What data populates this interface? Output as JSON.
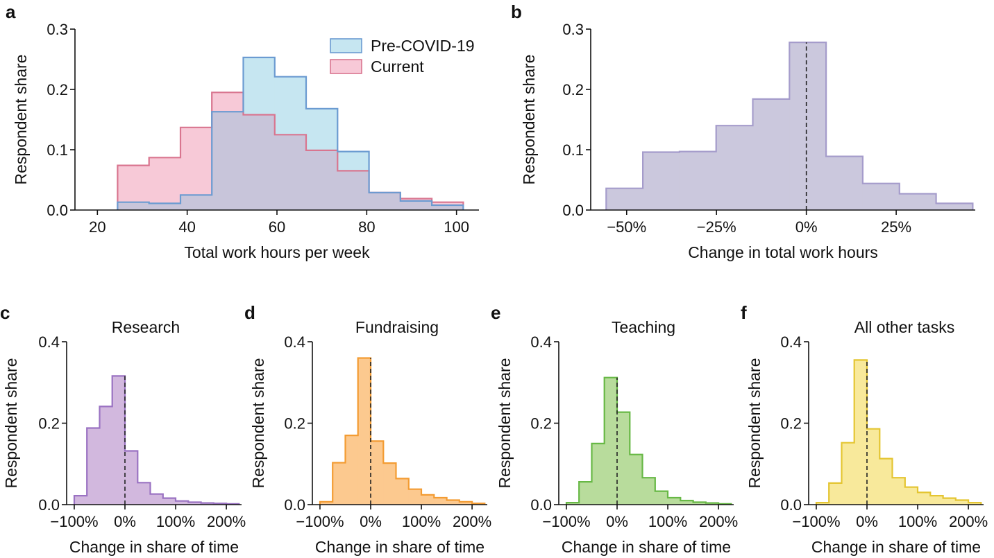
{
  "colors": {
    "pre_fill": "#c6e6f1",
    "pre_line": "#6b9bd1",
    "cur_fill": "#f7c9d7",
    "cur_line": "#d9758f",
    "overlap_fill": "#c8c5da",
    "b_fill": "#cbc8dd",
    "b_line": "#a59ccb",
    "research_fill": "#d2b8de",
    "research_line": "#9a72c2",
    "fund_fill": "#fcc98f",
    "fund_line": "#f39c33",
    "teach_fill": "#b8dc9c",
    "teach_line": "#67b845",
    "other_fill": "#f8e99b",
    "other_line": "#e4c532"
  },
  "chart_data": [
    {
      "panel": "a",
      "type": "histogram",
      "xlabel": "Total work hours per week",
      "ylabel": "Respondent share",
      "xlim": [
        15,
        105
      ],
      "ylim": [
        0,
        0.3
      ],
      "xticks": [
        20,
        40,
        60,
        80,
        100
      ],
      "yticks": [
        0.0,
        0.1,
        0.2,
        0.3
      ],
      "ytick_labels": [
        "0.0",
        "0.1",
        "0.2",
        "0.3"
      ],
      "legend_position": "top-right",
      "bin_edges": [
        24.5,
        31.5,
        38.5,
        45.5,
        52.5,
        59.5,
        66.5,
        73.5,
        80.5,
        87.5,
        94.5,
        101.5
      ],
      "series": [
        {
          "name": "Pre-COVID-19",
          "values": [
            0.013,
            0.011,
            0.025,
            0.163,
            0.253,
            0.221,
            0.168,
            0.097,
            0.029,
            0.015,
            0.008
          ]
        },
        {
          "name": "Current",
          "values": [
            0.074,
            0.087,
            0.137,
            0.195,
            0.158,
            0.125,
            0.099,
            0.065,
            0.029,
            0.019,
            0.013
          ]
        }
      ]
    },
    {
      "panel": "b",
      "type": "histogram",
      "xlabel": "Change in total work hours",
      "ylabel": "Respondent share",
      "xlim": [
        -0.6,
        0.47
      ],
      "ylim": [
        0,
        0.3
      ],
      "xticks": [
        -0.5,
        -0.25,
        0,
        0.25
      ],
      "xtick_labels": [
        "−50%",
        "−25%",
        "0%",
        "25%"
      ],
      "yticks": [
        0.0,
        0.1,
        0.2,
        0.3
      ],
      "ytick_labels": [
        "0.0",
        "0.1",
        "0.2",
        "0.3"
      ],
      "bin_edges": [
        -0.557,
        -0.455,
        -0.353,
        -0.251,
        -0.149,
        -0.047,
        0.055,
        0.157,
        0.259,
        0.361,
        0.463
      ],
      "values": [
        0.036,
        0.096,
        0.097,
        0.14,
        0.184,
        0.278,
        0.089,
        0.044,
        0.027,
        0.011
      ],
      "reference_line": 0
    },
    {
      "panel": "c",
      "type": "histogram",
      "title": "Research",
      "xlabel": "Change in share of time",
      "ylabel": "Respondent share",
      "xlim": [
        -1.15,
        2.3
      ],
      "ylim": [
        0,
        0.4
      ],
      "xticks": [
        -1,
        0,
        1,
        2
      ],
      "xtick_labels": [
        "−100%",
        "0%",
        "100%",
        "200%"
      ],
      "yticks": [
        0.0,
        0.2,
        0.4
      ],
      "ytick_labels": [
        "0.0",
        "0.2",
        "0.4"
      ],
      "bin_edges": [
        -1.0,
        -0.75,
        -0.5,
        -0.25,
        0.0,
        0.25,
        0.5,
        0.75,
        1.0,
        1.25,
        1.5,
        1.75,
        2.0,
        2.25
      ],
      "values": [
        0.022,
        0.188,
        0.241,
        0.316,
        0.132,
        0.054,
        0.026,
        0.016,
        0.009,
        0.006,
        0.004,
        0.003,
        0.002
      ],
      "reference_line": 0
    },
    {
      "panel": "d",
      "type": "histogram",
      "title": "Fundraising",
      "xlabel": "Change in share of time",
      "ylabel": "Respondent share",
      "xlim": [
        -1.15,
        2.3
      ],
      "ylim": [
        0,
        0.4
      ],
      "xticks": [
        -1,
        0,
        1,
        2
      ],
      "xtick_labels": [
        "−100%",
        "0%",
        "100%",
        "200%"
      ],
      "yticks": [
        0.0,
        0.2,
        0.4
      ],
      "ytick_labels": [
        "0.0",
        "0.2",
        "0.4"
      ],
      "bin_edges": [
        -1.0,
        -0.75,
        -0.5,
        -0.25,
        0.0,
        0.25,
        0.5,
        0.75,
        1.0,
        1.25,
        1.5,
        1.75,
        2.0,
        2.25
      ],
      "values": [
        0.007,
        0.103,
        0.17,
        0.36,
        0.156,
        0.102,
        0.064,
        0.038,
        0.024,
        0.017,
        0.011,
        0.007,
        0.003
      ],
      "reference_line": 0
    },
    {
      "panel": "e",
      "type": "histogram",
      "title": "Teaching",
      "xlabel": "Change in share of time",
      "ylabel": "Respondent share",
      "xlim": [
        -1.15,
        2.3
      ],
      "ylim": [
        0,
        0.4
      ],
      "xticks": [
        -1,
        0,
        1,
        2
      ],
      "xtick_labels": [
        "−100%",
        "0%",
        "100%",
        "200%"
      ],
      "yticks": [
        0.0,
        0.2,
        0.4
      ],
      "ytick_labels": [
        "0.0",
        "0.2",
        "0.4"
      ],
      "bin_edges": [
        -1.0,
        -0.75,
        -0.5,
        -0.25,
        0.0,
        0.25,
        0.5,
        0.75,
        1.0,
        1.25,
        1.5,
        1.75,
        2.0,
        2.25
      ],
      "values": [
        0.005,
        0.056,
        0.15,
        0.312,
        0.227,
        0.123,
        0.066,
        0.033,
        0.017,
        0.01,
        0.006,
        0.004,
        0.002
      ],
      "reference_line": 0
    },
    {
      "panel": "f",
      "type": "histogram",
      "title": "All other tasks",
      "xlabel": "Change in share of time",
      "ylabel": "Respondent share",
      "xlim": [
        -1.15,
        2.3
      ],
      "ylim": [
        0,
        0.4
      ],
      "xticks": [
        -1,
        0,
        1,
        2
      ],
      "xtick_labels": [
        "−100%",
        "0%",
        "100%",
        "200%"
      ],
      "yticks": [
        0.0,
        0.2,
        0.4
      ],
      "ytick_labels": [
        "0.0",
        "0.2",
        "0.4"
      ],
      "bin_edges": [
        -1.0,
        -0.75,
        -0.5,
        -0.25,
        0.0,
        0.25,
        0.5,
        0.75,
        1.0,
        1.25,
        1.5,
        1.75,
        2.0,
        2.25
      ],
      "values": [
        0.005,
        0.053,
        0.152,
        0.355,
        0.186,
        0.113,
        0.066,
        0.043,
        0.03,
        0.022,
        0.016,
        0.011,
        0.005
      ],
      "reference_line": 0
    }
  ]
}
